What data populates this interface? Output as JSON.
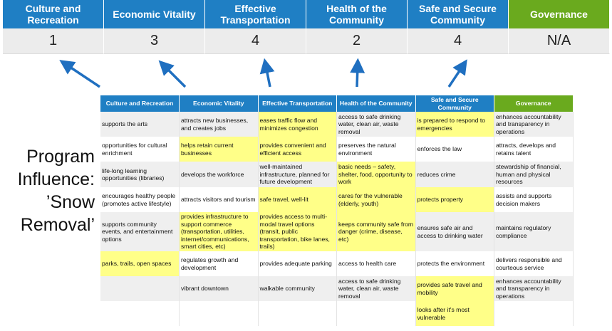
{
  "colors": {
    "blue": "#1f7fc4",
    "green": "#6aaa1e",
    "highlight": "#ffff88",
    "arrow": "#1f6fc0"
  },
  "categories": [
    {
      "label": "Culture and Recreation",
      "score": "1",
      "color": "#1f7fc4"
    },
    {
      "label": "Economic Vitality",
      "score": "3",
      "color": "#1f7fc4"
    },
    {
      "label": "Effective Transportation",
      "score": "4",
      "color": "#1f7fc4"
    },
    {
      "label": "Health of the Community",
      "score": "2",
      "color": "#1f7fc4"
    },
    {
      "label": "Safe and Secure Community",
      "score": "4",
      "color": "#1f7fc4"
    },
    {
      "label": "Governance",
      "score": "N/A",
      "color": "#6aaa1e"
    }
  ],
  "title_lines": [
    "Program",
    "Influence:",
    "’Snow",
    "Removal’"
  ],
  "table": {
    "headers": [
      "Culture and Recreation",
      "Economic Vitality",
      "Effective Transportation",
      "Health of the Community",
      "Safe and Secure Community",
      "Governance"
    ],
    "rows": [
      {
        "cells": [
          "supports the arts",
          "attracts new businesses, and creates jobs",
          "eases traffic flow and minimizes congestion",
          "access to safe drinking water, clean air, waste removal",
          "is prepared to respond to emergencies",
          "enhances accountability and transparency in operations"
        ],
        "highlighted": [
          2,
          4
        ]
      },
      {
        "cells": [
          "opportunities for cultural enrichment",
          "helps retain current businesses",
          "provides convenient and efficient access",
          "preserves the natural environment",
          "enforces the law",
          "attracts, develops and retains talent"
        ],
        "highlighted": [
          1,
          2
        ]
      },
      {
        "cells": [
          "life-long learning opportunities (libraries)",
          "develops the workforce",
          "well-maintained infrastructure, planned for future development",
          "basic needs – safety, shelter, food, opportunity to work",
          "reduces crime",
          "stewardship of financial, human and physical resources"
        ],
        "highlighted": [
          3
        ]
      },
      {
        "cells": [
          "encourages healthy people (promotes active lifestyle)",
          "attracts visitors and tourism",
          "safe travel, well-lit",
          "cares for the vulnerable (elderly, youth)",
          "protects property",
          "assists and supports decision makers"
        ],
        "highlighted": [
          2,
          3,
          4
        ]
      },
      {
        "cells": [
          "supports community events, and entertainment options",
          "provides infrastructure to support commerce (transportation, utilities, internet/communications, smart cities, etc)",
          "provides access to multi-modal travel options (transit, public transportation, bike lanes, trails)",
          "keeps community safe from danger (crime, disease, etc)",
          "ensures safe air and access to drinking water",
          "maintains regulatory compliance"
        ],
        "highlighted": [
          1,
          2,
          3
        ]
      },
      {
        "cells": [
          "parks, trails, open spaces",
          "regulates growth and development",
          "provides adequate parking",
          "access to health care",
          "protects the environment",
          "delivers responsible and courteous service"
        ],
        "highlighted": [
          0
        ]
      },
      {
        "cells": [
          "",
          "vibrant downtown",
          "walkable community",
          "access to safe drinking water, clean air, waste removal",
          "provides safe travel and mobility",
          "enhances accountability and transparency in operations"
        ],
        "highlighted": [
          4
        ]
      },
      {
        "cells": [
          "",
          "",
          "",
          "",
          "looks after it's most vulnerable",
          ""
        ],
        "highlighted": [
          4
        ]
      }
    ]
  }
}
